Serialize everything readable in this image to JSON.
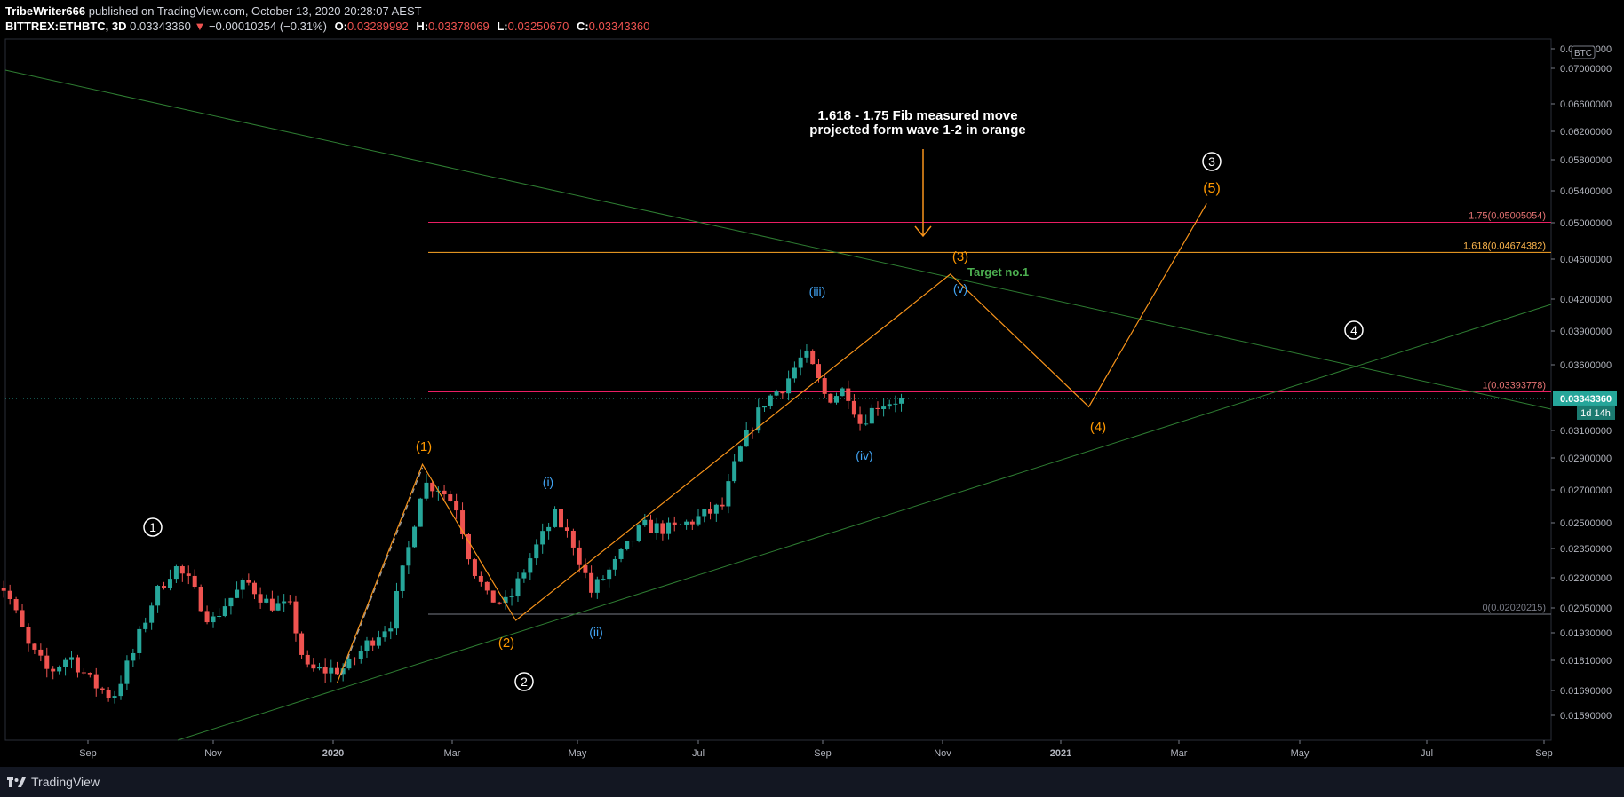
{
  "header": {
    "line1_author": "TribeWriter666",
    "line1_rest": "published on TradingView.com, October 13, 2020 20:28:07 AEST",
    "symbol": "BITTREX:ETHBTC, 3D",
    "last": "0.03343360",
    "change": "−0.00010254 (−0.31%)",
    "o_label": "O:",
    "o": "0.03289992",
    "h_label": "H:",
    "h": "0.03378069",
    "l_label": "L:",
    "l": "0.03250670",
    "c_label": "C:",
    "c": "0.03343360"
  },
  "footer": {
    "brand": "TradingView"
  },
  "colors": {
    "up": "#26a69a",
    "down": "#ef5350",
    "orange": "#f7931a",
    "blue": "#2196f3",
    "fib_pink": "#e91e63",
    "green_line": "#1b5e20",
    "price_tag": "#26a69a"
  },
  "chart_data": {
    "type": "candlestick",
    "timeframe": "3D",
    "x_ticks": [
      "Sep",
      "Nov",
      "2020",
      "Mar",
      "May",
      "Jul",
      "Sep",
      "Nov",
      "2021",
      "Mar",
      "May",
      "Jul",
      "Sep"
    ],
    "y_ticks": [
      "0.07400000",
      "0.07000000",
      "0.06600000",
      "0.06200000",
      "0.05800000",
      "0.05400000",
      "0.05000000",
      "0.04600000",
      "0.04200000",
      "0.03900000",
      "0.03600000",
      "0.03100000",
      "0.02900000",
      "0.02700000",
      "0.02500000",
      "0.02350000",
      "0.02200000",
      "0.02050000",
      "0.01930000",
      "0.01810000",
      "0.01690000",
      "0.01590000"
    ],
    "y_range": [
      0.0153,
      0.0768
    ],
    "axis_currency": "BTC",
    "current_price": "0.03343360",
    "countdown": "1d 14h",
    "price_path": [
      {
        "d": "2019-07-15",
        "p": 0.0222
      },
      {
        "d": "2019-07-25",
        "p": 0.0214
      },
      {
        "d": "2019-08-05",
        "p": 0.0187
      },
      {
        "d": "2019-08-15",
        "p": 0.0176
      },
      {
        "d": "2019-08-25",
        "p": 0.0183
      },
      {
        "d": "2019-09-05",
        "p": 0.0172
      },
      {
        "d": "2019-09-15",
        "p": 0.0166
      },
      {
        "d": "2019-09-25",
        "p": 0.0184
      },
      {
        "d": "2019-10-05",
        "p": 0.021
      },
      {
        "d": "2019-10-15",
        "p": 0.0226
      },
      {
        "d": "2019-10-22",
        "p": 0.0218
      },
      {
        "d": "2019-11-02",
        "p": 0.0198
      },
      {
        "d": "2019-11-10",
        "p": 0.0208
      },
      {
        "d": "2019-11-20",
        "p": 0.0218
      },
      {
        "d": "2019-12-01",
        "p": 0.0207
      },
      {
        "d": "2019-12-12",
        "p": 0.0205
      },
      {
        "d": "2019-12-20",
        "p": 0.0177
      },
      {
        "d": "2020-01-01",
        "p": 0.0177
      },
      {
        "d": "2020-01-10",
        "p": 0.0178
      },
      {
        "d": "2020-01-20",
        "p": 0.0188
      },
      {
        "d": "2020-02-01",
        "p": 0.0198
      },
      {
        "d": "2020-02-10",
        "p": 0.0235
      },
      {
        "d": "2020-02-17",
        "p": 0.0274
      },
      {
        "d": "2020-02-25",
        "p": 0.0272
      },
      {
        "d": "2020-03-05",
        "p": 0.026
      },
      {
        "d": "2020-03-12",
        "p": 0.0228
      },
      {
        "d": "2020-03-20",
        "p": 0.021
      },
      {
        "d": "2020-03-30",
        "p": 0.0207
      },
      {
        "d": "2020-04-10",
        "p": 0.023
      },
      {
        "d": "2020-04-22",
        "p": 0.0254
      },
      {
        "d": "2020-05-01",
        "p": 0.0238
      },
      {
        "d": "2020-05-10",
        "p": 0.0213
      },
      {
        "d": "2020-05-22",
        "p": 0.0227
      },
      {
        "d": "2020-06-05",
        "p": 0.0248
      },
      {
        "d": "2020-06-20",
        "p": 0.0246
      },
      {
        "d": "2020-07-05",
        "p": 0.0254
      },
      {
        "d": "2020-07-15",
        "p": 0.026
      },
      {
        "d": "2020-07-25",
        "p": 0.03
      },
      {
        "d": "2020-08-05",
        "p": 0.0332
      },
      {
        "d": "2020-08-15",
        "p": 0.0345
      },
      {
        "d": "2020-08-25",
        "p": 0.037
      },
      {
        "d": "2020-09-05",
        "p": 0.0334
      },
      {
        "d": "2020-09-15",
        "p": 0.0342
      },
      {
        "d": "2020-09-22",
        "p": 0.0316
      },
      {
        "d": "2020-10-01",
        "p": 0.033
      },
      {
        "d": "2020-10-12",
        "p": 0.0334
      }
    ],
    "fib_levels": [
      {
        "label": "1.75(0.05005054)",
        "value": 0.05005054
      },
      {
        "label": "1.618(0.04674382)",
        "value": 0.04674382
      },
      {
        "label": "1(0.03393778)",
        "value": 0.03393778
      },
      {
        "label": "0(0.02020215)",
        "value": 0.02020215
      }
    ],
    "orange_path": [
      {
        "d": "2020-01-03",
        "p": 0.0172
      },
      {
        "d": "2020-02-15",
        "p": 0.0286
      },
      {
        "d": "2020-04-01",
        "p": 0.0199
      },
      {
        "d": "2020-11-05",
        "p": 0.0445
      },
      {
        "d": "2021-01-15",
        "p": 0.0328
      },
      {
        "d": "2021-03-15",
        "p": 0.0524
      }
    ],
    "wave_labels": {
      "primary": [
        "1",
        "2",
        "3",
        "4"
      ],
      "orange": [
        "(1)",
        "(2)",
        "(3)",
        "(4)",
        "(5)"
      ],
      "blue": [
        "(i)",
        "(ii)",
        "(iii)",
        "(iv)",
        "(v)"
      ]
    },
    "annotations": {
      "note_line1": "1.618 - 1.75 Fib measured move",
      "note_line2": "projected form wave 1-2 in orange",
      "target": "Target no.1"
    }
  }
}
